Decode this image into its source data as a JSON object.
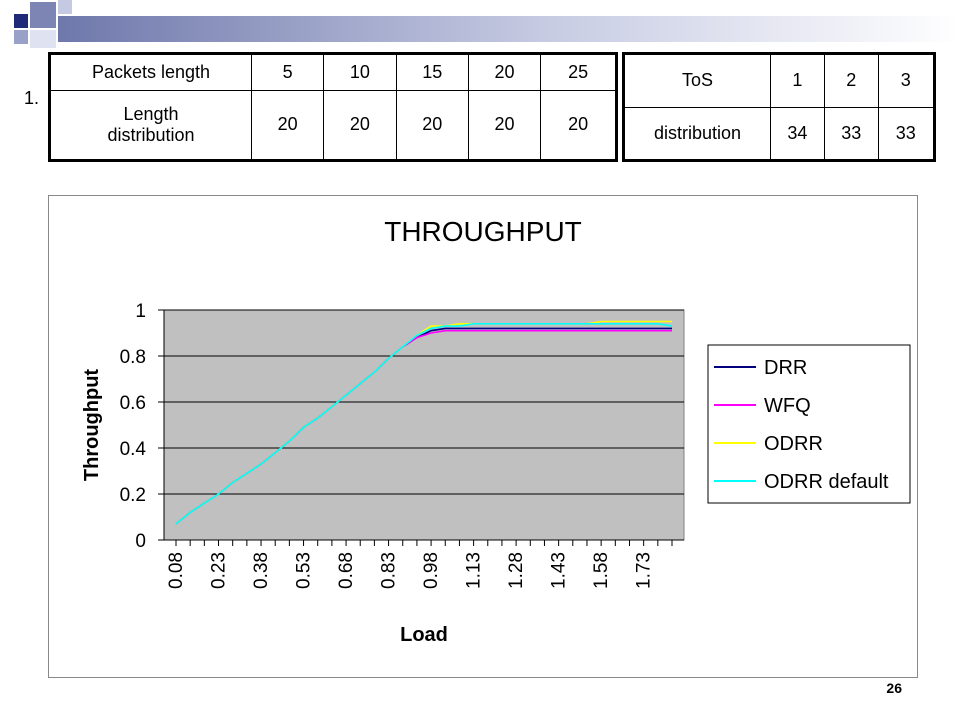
{
  "slide": {
    "item_number": "1.",
    "page_number": "26"
  },
  "table_packets": {
    "rows": [
      {
        "header": "Packets length",
        "cells": [
          "5",
          "10",
          "15",
          "20",
          "25"
        ]
      },
      {
        "header": "Length distribution",
        "cells": [
          "20",
          "20",
          "20",
          "20",
          "20"
        ]
      }
    ]
  },
  "table_tos": {
    "rows": [
      {
        "header": "ToS",
        "cells": [
          "1",
          "2",
          "3"
        ]
      },
      {
        "header": "distribution",
        "cells": [
          "34",
          "33",
          "33"
        ]
      }
    ]
  },
  "colors": {
    "plot_bg": "#c0c0c0",
    "DRR": "#000080",
    "WFQ": "#ff00ff",
    "ODRR": "#ffff00",
    "ODRR_default": "#00ffff",
    "deco_navy": "#1f2a78",
    "deco_slate": "#7c85b4"
  },
  "chart_data": {
    "type": "line",
    "title": "THROUGHPUT",
    "xlabel": "Load",
    "ylabel": "Throughput",
    "ylim": [
      0,
      1
    ],
    "yticks": [
      "0",
      "0.2",
      "0.4",
      "0.6",
      "0.8",
      "1"
    ],
    "grid": "horizontal",
    "legend_position": "right",
    "x": [
      "0.08",
      "0.13",
      "0.18",
      "0.23",
      "0.28",
      "0.33",
      "0.38",
      "0.43",
      "0.48",
      "0.53",
      "0.58",
      "0.63",
      "0.68",
      "0.73",
      "0.78",
      "0.83",
      "0.88",
      "0.93",
      "0.98",
      "1.03",
      "1.08",
      "1.13",
      "1.18",
      "1.23",
      "1.28",
      "1.33",
      "1.38",
      "1.43",
      "1.48",
      "1.53",
      "1.58",
      "1.63",
      "1.68",
      "1.73",
      "1.78",
      "1.83"
    ],
    "xtick_labels": [
      "0.08",
      "0.23",
      "0.38",
      "0.53",
      "0.68",
      "0.83",
      "0.98",
      "1.13",
      "1.28",
      "1.43",
      "1.58",
      "1.73"
    ],
    "series": [
      {
        "name": "DRR",
        "values": [
          0.07,
          0.12,
          0.16,
          0.2,
          0.25,
          0.29,
          0.33,
          0.38,
          0.43,
          0.49,
          0.53,
          0.58,
          0.63,
          0.68,
          0.73,
          0.79,
          0.84,
          0.88,
          0.91,
          0.92,
          0.92,
          0.92,
          0.92,
          0.92,
          0.92,
          0.92,
          0.92,
          0.92,
          0.92,
          0.92,
          0.92,
          0.92,
          0.92,
          0.92,
          0.92,
          0.92
        ]
      },
      {
        "name": "WFQ",
        "values": [
          0.07,
          0.12,
          0.16,
          0.2,
          0.25,
          0.29,
          0.33,
          0.38,
          0.43,
          0.49,
          0.53,
          0.58,
          0.63,
          0.68,
          0.73,
          0.79,
          0.84,
          0.88,
          0.9,
          0.91,
          0.91,
          0.91,
          0.91,
          0.91,
          0.91,
          0.91,
          0.91,
          0.91,
          0.91,
          0.91,
          0.91,
          0.91,
          0.91,
          0.91,
          0.91,
          0.91
        ]
      },
      {
        "name": "ODRR",
        "values": [
          0.07,
          0.12,
          0.16,
          0.2,
          0.25,
          0.29,
          0.33,
          0.38,
          0.43,
          0.49,
          0.53,
          0.58,
          0.63,
          0.68,
          0.73,
          0.79,
          0.84,
          0.89,
          0.93,
          0.93,
          0.94,
          0.94,
          0.94,
          0.94,
          0.94,
          0.94,
          0.94,
          0.94,
          0.94,
          0.94,
          0.95,
          0.95,
          0.95,
          0.95,
          0.95,
          0.95
        ]
      },
      {
        "name": "ODRR default",
        "values": [
          0.07,
          0.12,
          0.16,
          0.2,
          0.25,
          0.29,
          0.33,
          0.38,
          0.43,
          0.49,
          0.53,
          0.58,
          0.63,
          0.68,
          0.73,
          0.79,
          0.84,
          0.89,
          0.92,
          0.93,
          0.93,
          0.94,
          0.94,
          0.94,
          0.94,
          0.94,
          0.94,
          0.94,
          0.94,
          0.94,
          0.94,
          0.94,
          0.94,
          0.94,
          0.94,
          0.93
        ]
      }
    ]
  }
}
